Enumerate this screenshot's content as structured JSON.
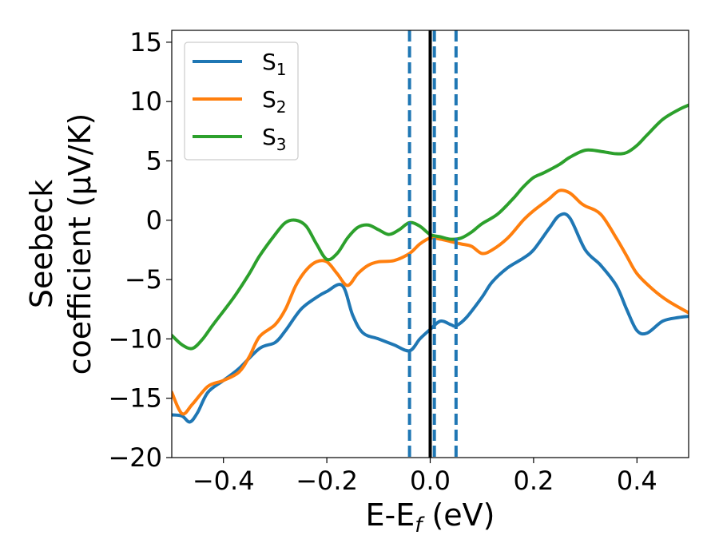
{
  "chart_data": {
    "type": "line",
    "title": "",
    "xlabel": "E-E$_f$ (eV)",
    "xlabel_main": "E-E",
    "xlabel_sub": "f",
    "xlabel_tail": " (eV)",
    "ylabel": "Seebeck coefficient  (μV/K)",
    "ylabel_line1": "Seebeck",
    "ylabel_line2": "coefficient  (μV/K)",
    "xlim": [
      -0.5,
      0.5
    ],
    "ylim": [
      -20,
      16
    ],
    "xticks": [
      -0.4,
      -0.2,
      0.0,
      0.2,
      0.4
    ],
    "xtick_labels": [
      "−0.4",
      "−0.2",
      "0.0",
      "0.2",
      "0.4"
    ],
    "yticks": [
      -20,
      -15,
      -10,
      -5,
      0,
      5,
      10,
      15
    ],
    "ytick_labels": [
      "−20",
      "−15",
      "−10",
      "−5",
      "0",
      "5",
      "10",
      "15"
    ],
    "grid": false,
    "legend_position": "top-left",
    "vlines": [
      {
        "x": -0.04,
        "style": "dashed",
        "color": "#1f77b4"
      },
      {
        "x": 0.0,
        "style": "solid",
        "color": "#000000"
      },
      {
        "x": 0.008,
        "style": "dashed",
        "color": "#1f77b4"
      },
      {
        "x": 0.05,
        "style": "dashed",
        "color": "#1f77b4"
      }
    ],
    "series": [
      {
        "name": "S1",
        "label_main": "S",
        "label_sub": "1",
        "color": "#1f77b4",
        "x": [
          -0.5,
          -0.48,
          -0.465,
          -0.45,
          -0.43,
          -0.4,
          -0.37,
          -0.33,
          -0.3,
          -0.28,
          -0.25,
          -0.22,
          -0.2,
          -0.17,
          -0.15,
          -0.13,
          -0.1,
          -0.07,
          -0.04,
          -0.02,
          0.0,
          0.02,
          0.04,
          0.05,
          0.07,
          0.1,
          0.12,
          0.15,
          0.18,
          0.2,
          0.23,
          0.25,
          0.27,
          0.3,
          0.33,
          0.36,
          0.38,
          0.4,
          0.42,
          0.45,
          0.48,
          0.5
        ],
        "y": [
          -16.4,
          -16.5,
          -17.0,
          -16.2,
          -14.5,
          -13.5,
          -12.5,
          -10.8,
          -10.3,
          -9.3,
          -7.5,
          -6.5,
          -6.0,
          -5.5,
          -8.0,
          -9.5,
          -10.0,
          -10.5,
          -11.0,
          -10.0,
          -9.2,
          -8.5,
          -8.8,
          -8.9,
          -8.2,
          -6.5,
          -5.2,
          -4.0,
          -3.2,
          -2.5,
          -0.7,
          0.4,
          0.2,
          -2.5,
          -3.8,
          -5.5,
          -7.5,
          -9.3,
          -9.5,
          -8.5,
          -8.2,
          -8.1
        ]
      },
      {
        "name": "S2",
        "label_main": "S",
        "label_sub": "2",
        "color": "#ff7f0e",
        "x": [
          -0.5,
          -0.48,
          -0.46,
          -0.43,
          -0.4,
          -0.37,
          -0.35,
          -0.33,
          -0.3,
          -0.28,
          -0.26,
          -0.24,
          -0.22,
          -0.2,
          -0.18,
          -0.16,
          -0.14,
          -0.12,
          -0.1,
          -0.07,
          -0.04,
          -0.02,
          0.0,
          0.02,
          0.04,
          0.06,
          0.08,
          0.1,
          0.12,
          0.15,
          0.18,
          0.2,
          0.23,
          0.25,
          0.27,
          0.29,
          0.3,
          0.33,
          0.36,
          0.38,
          0.4,
          0.43,
          0.46,
          0.5
        ],
        "y": [
          -14.5,
          -16.3,
          -15.5,
          -14.0,
          -13.5,
          -12.8,
          -11.5,
          -9.8,
          -8.8,
          -7.5,
          -5.5,
          -4.2,
          -3.5,
          -3.5,
          -4.5,
          -5.5,
          -4.5,
          -3.8,
          -3.5,
          -3.4,
          -2.8,
          -2.0,
          -1.5,
          -1.6,
          -1.8,
          -2.0,
          -2.2,
          -2.8,
          -2.5,
          -1.5,
          0.0,
          0.8,
          1.8,
          2.5,
          2.3,
          1.5,
          1.2,
          0.5,
          -1.5,
          -3.0,
          -4.5,
          -5.8,
          -6.8,
          -7.8
        ]
      },
      {
        "name": "S3",
        "label_main": "S",
        "label_sub": "3",
        "color": "#2ca02c",
        "x": [
          -0.5,
          -0.48,
          -0.46,
          -0.44,
          -0.42,
          -0.38,
          -0.35,
          -0.33,
          -0.3,
          -0.28,
          -0.26,
          -0.24,
          -0.22,
          -0.2,
          -0.18,
          -0.16,
          -0.14,
          -0.12,
          -0.1,
          -0.08,
          -0.06,
          -0.04,
          -0.02,
          0.0,
          0.02,
          0.04,
          0.06,
          0.08,
          0.1,
          0.13,
          0.16,
          0.18,
          0.2,
          0.22,
          0.25,
          0.27,
          0.3,
          0.33,
          0.36,
          0.38,
          0.4,
          0.42,
          0.45,
          0.48,
          0.5
        ],
        "y": [
          -9.7,
          -10.5,
          -10.8,
          -10.0,
          -8.8,
          -6.5,
          -4.5,
          -3.0,
          -1.2,
          -0.2,
          0.0,
          -0.5,
          -2.0,
          -3.3,
          -2.8,
          -1.5,
          -0.6,
          -0.4,
          -0.8,
          -1.2,
          -0.8,
          -0.2,
          -0.5,
          -1.2,
          -1.4,
          -1.6,
          -1.5,
          -1.0,
          -0.3,
          0.5,
          1.8,
          2.8,
          3.6,
          4.0,
          4.7,
          5.3,
          5.9,
          5.8,
          5.6,
          5.7,
          6.3,
          7.2,
          8.5,
          9.3,
          9.7
        ]
      }
    ]
  }
}
